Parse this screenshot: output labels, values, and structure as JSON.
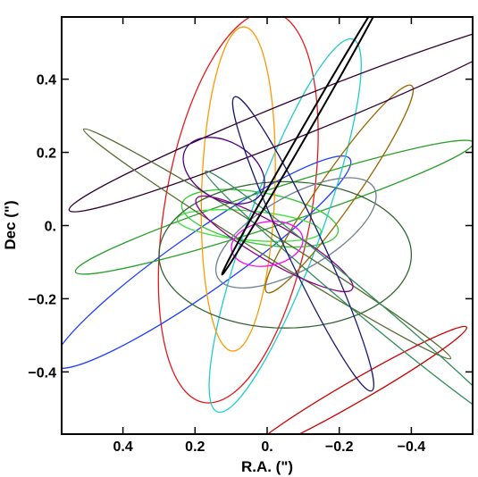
{
  "chart_data": {
    "type": "line",
    "xlabel": "R.A. (\")",
    "ylabel": "Dec (\")",
    "xlim": [
      0.57,
      -0.57
    ],
    "ylim": [
      -0.57,
      0.57
    ],
    "xticks": [
      {
        "value": 0.4,
        "label": "0.4"
      },
      {
        "value": 0.2,
        "label": "0.2"
      },
      {
        "value": 0.0,
        "label": "0."
      },
      {
        "value": -0.2,
        "label": "−0.2"
      },
      {
        "value": -0.4,
        "label": "−0.4"
      }
    ],
    "yticks": [
      {
        "value": 0.4,
        "label": "0.4"
      },
      {
        "value": 0.2,
        "label": "0.2"
      },
      {
        "value": 0.0,
        "label": "0."
      },
      {
        "value": -0.2,
        "label": "−0.2"
      },
      {
        "value": -0.4,
        "label": "−0.4"
      }
    ],
    "grid": false,
    "legend": "none",
    "orbits": [
      {
        "color": "#e31a1c",
        "cx": 0.08,
        "cy": 0.05,
        "a": 0.55,
        "b": 0.2,
        "angle": 80
      },
      {
        "color": "#1f3fff",
        "cx": 0.18,
        "cy": -0.1,
        "a": 0.5,
        "b": 0.08,
        "angle": 35
      },
      {
        "color": "#2ca02c",
        "cx": -0.02,
        "cy": 0.05,
        "a": 0.58,
        "b": 0.05,
        "angle": 18
      },
      {
        "color": "#33cc33",
        "cx": 0.02,
        "cy": 0.02,
        "a": 0.22,
        "b": 0.07,
        "angle": -10
      },
      {
        "color": "#40e040",
        "cx": 0.05,
        "cy": 0.0,
        "a": 0.2,
        "b": 0.04,
        "angle": -5
      },
      {
        "color": "#22cccc",
        "cx": -0.05,
        "cy": 0.0,
        "a": 0.55,
        "b": 0.1,
        "angle": 70
      },
      {
        "color": "#ff9900",
        "cx": 0.08,
        "cy": 0.1,
        "a": 0.45,
        "b": 0.1,
        "angle": 88
      },
      {
        "color": "#996600",
        "cx": -0.2,
        "cy": 0.1,
        "a": 0.35,
        "b": 0.05,
        "angle": 55
      },
      {
        "color": "#330033",
        "cx": -0.1,
        "cy": 0.3,
        "a": 0.7,
        "b": 0.05,
        "angle": 22
      },
      {
        "color": "#336633",
        "cx": -0.05,
        "cy": -0.08,
        "a": 0.35,
        "b": 0.2,
        "angle": 0
      },
      {
        "color": "#556b2f",
        "cx": 0.0,
        "cy": -0.05,
        "a": 0.6,
        "b": 0.03,
        "angle": -32
      },
      {
        "color": "#708090",
        "cx": -0.08,
        "cy": -0.02,
        "a": 0.25,
        "b": 0.1,
        "angle": 30
      },
      {
        "color": "#4b0082",
        "cx": 0.12,
        "cy": 0.15,
        "a": 0.08,
        "b": 0.12,
        "angle": 60
      },
      {
        "color": "#8b008b",
        "cx": -0.02,
        "cy": -0.05,
        "a": 0.25,
        "b": 0.05,
        "angle": -30
      },
      {
        "color": "#cc0000",
        "cx": -0.25,
        "cy": -0.45,
        "a": 0.35,
        "b": 0.03,
        "angle": 30
      },
      {
        "color": "#ff00ff",
        "cx": 0.0,
        "cy": -0.05,
        "a": 0.1,
        "b": 0.06,
        "angle": 10
      },
      {
        "color": "#2e8b57",
        "cx": -0.25,
        "cy": -0.2,
        "a": 0.55,
        "b": 0.03,
        "angle": -40
      },
      {
        "color": "#191970",
        "cx": -0.1,
        "cy": -0.05,
        "a": 0.45,
        "b": 0.05,
        "angle": -65
      },
      {
        "color": "#000000",
        "cx": -0.1,
        "cy": 0.25,
        "a": 0.45,
        "b": 0.01,
        "angle": 60
      }
    ]
  }
}
